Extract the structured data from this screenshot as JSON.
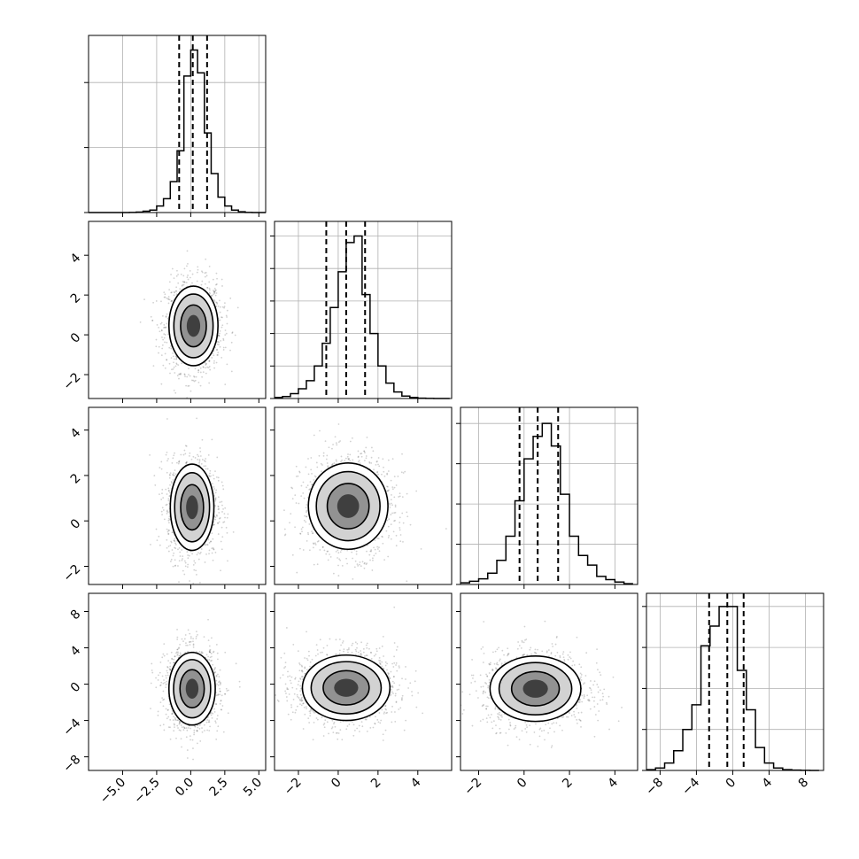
{
  "chart_data": {
    "type": "corner",
    "grid": true,
    "legend": "none",
    "colors": {
      "line": "#000000",
      "grid": "#b0b0b0",
      "scatter": "#000000",
      "hist2d_dark": "#3b3b3b"
    },
    "parameters": [
      {
        "range": [
          -7.5,
          5.5
        ],
        "ticks": [
          -5.0,
          -2.5,
          0.0,
          2.5,
          5.0
        ],
        "tick_labels": [
          "−5.0",
          "−2.5",
          "0.0",
          "2.5",
          "5.0"
        ],
        "mean": 0.2,
        "sd": 1.0,
        "quantiles": [
          -0.85,
          0.15,
          1.2
        ],
        "hist_edges": [
          -7.5,
          -7.0,
          -6.5,
          -6.0,
          -5.5,
          -5.0,
          -4.5,
          -4.0,
          -3.5,
          -3.0,
          -2.5,
          -2.0,
          -1.5,
          -1.0,
          -0.5,
          0.0,
          0.5,
          1.0,
          1.5,
          2.0,
          2.5,
          3.0,
          3.5,
          4.0,
          4.5,
          5.0,
          5.5
        ],
        "hist_counts": [
          0,
          0,
          0,
          0,
          0,
          0,
          1,
          3,
          8,
          15,
          40,
          85,
          190,
          380,
          840,
          1000,
          860,
          490,
          240,
          95,
          40,
          15,
          5,
          1,
          0,
          0
        ],
        "hist_ylim": [
          0,
          1090
        ],
        "hist_yticks": [
          0,
          400,
          800
        ]
      },
      {
        "range": [
          -3.2,
          5.7
        ],
        "ticks": [
          -2,
          0,
          2,
          4
        ],
        "tick_labels": [
          "−2",
          "0",
          "2",
          "4"
        ],
        "mean": 0.4,
        "sd": 1.0,
        "quantiles": [
          -0.6,
          0.4,
          1.35
        ],
        "hist_edges": [
          -3.2,
          -2.8,
          -2.4,
          -2.0,
          -1.6,
          -1.2,
          -0.8,
          -0.4,
          0.0,
          0.4,
          0.8,
          1.2,
          1.6,
          2.0,
          2.4,
          2.8,
          3.2,
          3.6,
          4.0,
          4.4,
          4.8,
          5.2,
          5.6
        ],
        "hist_counts": [
          6,
          12,
          30,
          60,
          110,
          200,
          340,
          560,
          780,
          960,
          1000,
          640,
          400,
          200,
          95,
          40,
          15,
          6,
          2,
          1,
          0,
          0
        ],
        "hist_ylim": [
          0,
          1090
        ],
        "hist_yticks": [
          0,
          200,
          400,
          600,
          800,
          1000
        ]
      },
      {
        "range": [
          -2.8,
          5.0
        ],
        "ticks": [
          -2,
          0,
          2,
          4
        ],
        "tick_labels": [
          "−2",
          "0",
          "2",
          "4"
        ],
        "mean": 0.65,
        "sd": 0.85,
        "quantiles": [
          -0.2,
          0.6,
          1.5
        ],
        "hist_edges": [
          -2.8,
          -2.4,
          -2.0,
          -1.6,
          -1.2,
          -0.8,
          -0.4,
          0.0,
          0.4,
          0.8,
          1.2,
          1.6,
          2.0,
          2.4,
          2.8,
          3.2,
          3.6,
          4.0,
          4.4,
          4.8
        ],
        "hist_counts": [
          10,
          20,
          35,
          70,
          150,
          300,
          520,
          780,
          920,
          1000,
          860,
          560,
          300,
          180,
          120,
          50,
          30,
          15,
          5
        ],
        "hist_ylim": [
          0,
          1100
        ],
        "hist_yticks": [
          0,
          250,
          500,
          750,
          1000
        ]
      },
      {
        "range": [
          -9.5,
          10.0
        ],
        "ticks": [
          -8,
          -4,
          0,
          4,
          8
        ],
        "tick_labels": [
          "−8",
          "−4",
          "0",
          "4",
          "8"
        ],
        "mean": -0.5,
        "sd": 2.0,
        "quantiles": [
          -2.6,
          -0.6,
          1.2
        ],
        "hist_edges": [
          -9.5,
          -8.5,
          -7.5,
          -6.5,
          -5.5,
          -4.5,
          -3.5,
          -2.5,
          -1.5,
          -0.5,
          0.5,
          1.5,
          2.5,
          3.5,
          4.5,
          5.5,
          6.5,
          7.5,
          8.5,
          9.5
        ],
        "hist_counts": [
          5,
          15,
          45,
          120,
          250,
          400,
          760,
          880,
          1000,
          1000,
          610,
          370,
          140,
          45,
          15,
          5,
          2,
          1,
          0
        ],
        "hist_ylim": [
          0,
          1080
        ],
        "hist_yticks": [
          0,
          250,
          500,
          750,
          1000
        ]
      }
    ],
    "pairs": [
      {
        "x": 0,
        "y": 1,
        "center": [
          0.2,
          0.45
        ],
        "sd": [
          0.9,
          1.0
        ],
        "contour_radii": [
          0.55,
          1.05,
          1.6,
          2.0
        ]
      },
      {
        "x": 0,
        "y": 2,
        "center": [
          0.1,
          0.6
        ],
        "sd": [
          0.8,
          0.95
        ],
        "contour_radii": [
          0.55,
          1.05,
          1.6,
          2.0
        ]
      },
      {
        "x": 1,
        "y": 2,
        "center": [
          0.5,
          0.65
        ],
        "sd": [
          1.0,
          0.95
        ],
        "contour_radii": [
          0.55,
          1.05,
          1.6,
          2.0
        ]
      },
      {
        "x": 0,
        "y": 3,
        "center": [
          0.1,
          -0.5
        ],
        "sd": [
          0.85,
          2.0
        ],
        "contour_radii": [
          0.55,
          1.05,
          1.6,
          2.0
        ]
      },
      {
        "x": 1,
        "y": 3,
        "center": [
          0.4,
          -0.4
        ],
        "sd": [
          1.1,
          1.8
        ],
        "contour_radii": [
          0.55,
          1.05,
          1.6,
          2.0
        ]
      },
      {
        "x": 2,
        "y": 3,
        "center": [
          0.5,
          -0.5
        ],
        "sd": [
          1.0,
          1.8
        ],
        "contour_radii": [
          0.55,
          1.05,
          1.6,
          2.0
        ]
      }
    ]
  }
}
